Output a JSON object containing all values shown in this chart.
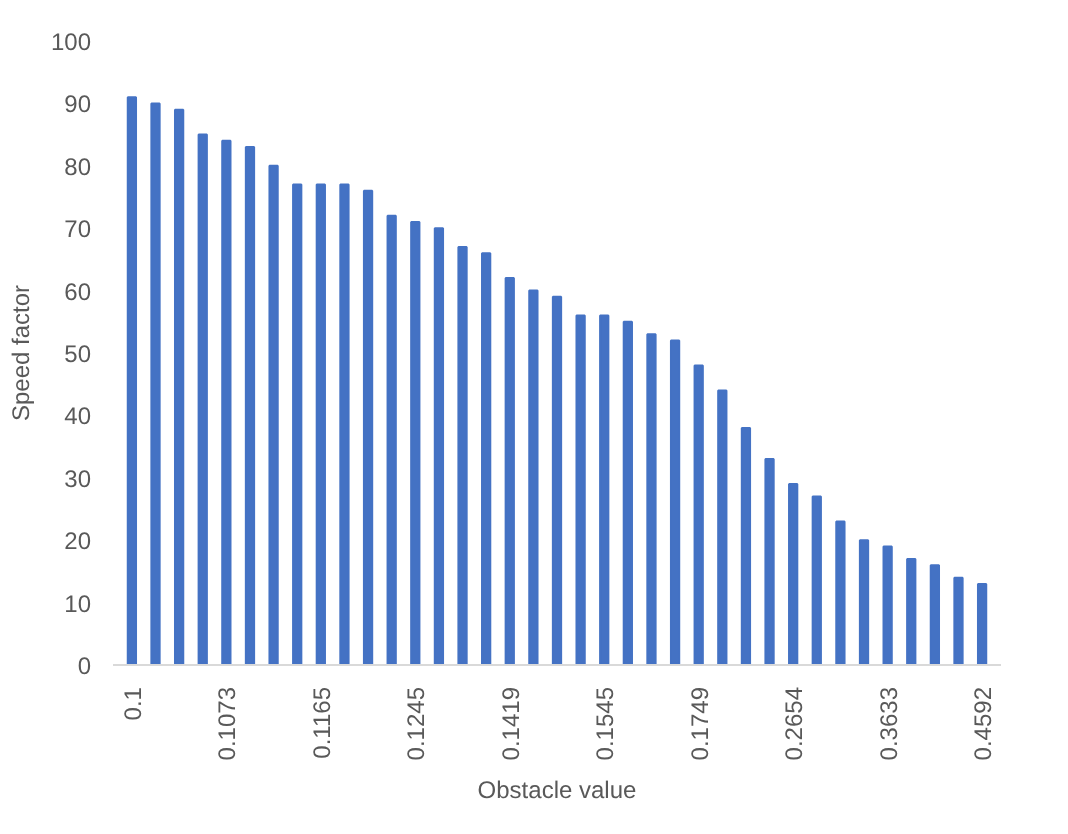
{
  "chart_data": {
    "type": "bar",
    "xlabel": "Obstacle value",
    "ylabel": "Speed factor",
    "categories": [
      "0.1",
      null,
      null,
      null,
      "0.1073",
      null,
      null,
      null,
      "0.1165",
      null,
      null,
      null,
      "0.1245",
      null,
      null,
      null,
      "0.1419",
      null,
      null,
      null,
      "0.1545",
      null,
      null,
      null,
      "0.1749",
      null,
      null,
      null,
      "0.2654",
      null,
      null,
      null,
      "0.3633",
      null,
      null,
      null,
      "0.4592"
    ],
    "values": [
      91,
      90,
      89,
      85,
      84,
      83,
      80,
      77,
      77,
      77,
      76,
      72,
      71,
      70,
      67,
      66,
      62,
      60,
      59,
      56,
      56,
      55,
      53,
      52,
      48,
      44,
      38,
      33,
      29,
      27,
      23,
      20,
      19,
      17,
      16,
      14,
      13
    ],
    "color": "#4472c4",
    "ylim": [
      0,
      100
    ],
    "yticks": [
      0,
      10,
      20,
      30,
      40,
      50,
      60,
      70,
      80,
      90,
      100
    ],
    "grid": false
  }
}
